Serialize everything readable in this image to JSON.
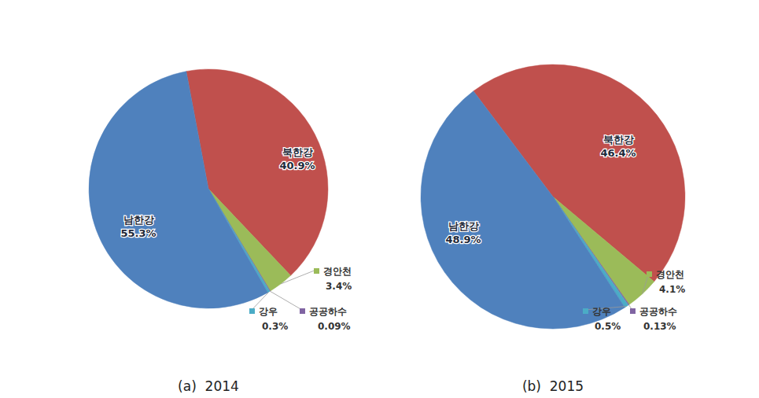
{
  "chart_data": [
    {
      "type": "pie",
      "title": "(a)  2014",
      "categories": [
        "북한강",
        "경안천",
        "공공하수",
        "강우",
        "남한강"
      ],
      "values": [
        40.9,
        3.4,
        0.09,
        0.3,
        55.3
      ],
      "value_labels": [
        "40.9%",
        "3.4%",
        "0.09%",
        "0.3%",
        "55.3%"
      ],
      "colors": [
        "#c0504d",
        "#9bbb59",
        "#8064a2",
        "#4bacc6",
        "#4f81bd"
      ],
      "data_labels": true
    },
    {
      "type": "pie",
      "title": "(b)  2015",
      "categories": [
        "북한강",
        "경안천",
        "공공하수",
        "강우",
        "남한강"
      ],
      "values": [
        46.4,
        4.1,
        0.13,
        0.5,
        48.9
      ],
      "value_labels": [
        "46.4%",
        "4.1%",
        "0.13%",
        "0.5%",
        "48.9%"
      ],
      "colors": [
        "#c0504d",
        "#9bbb59",
        "#8064a2",
        "#4bacc6",
        "#4f81bd"
      ],
      "data_labels": true
    }
  ]
}
